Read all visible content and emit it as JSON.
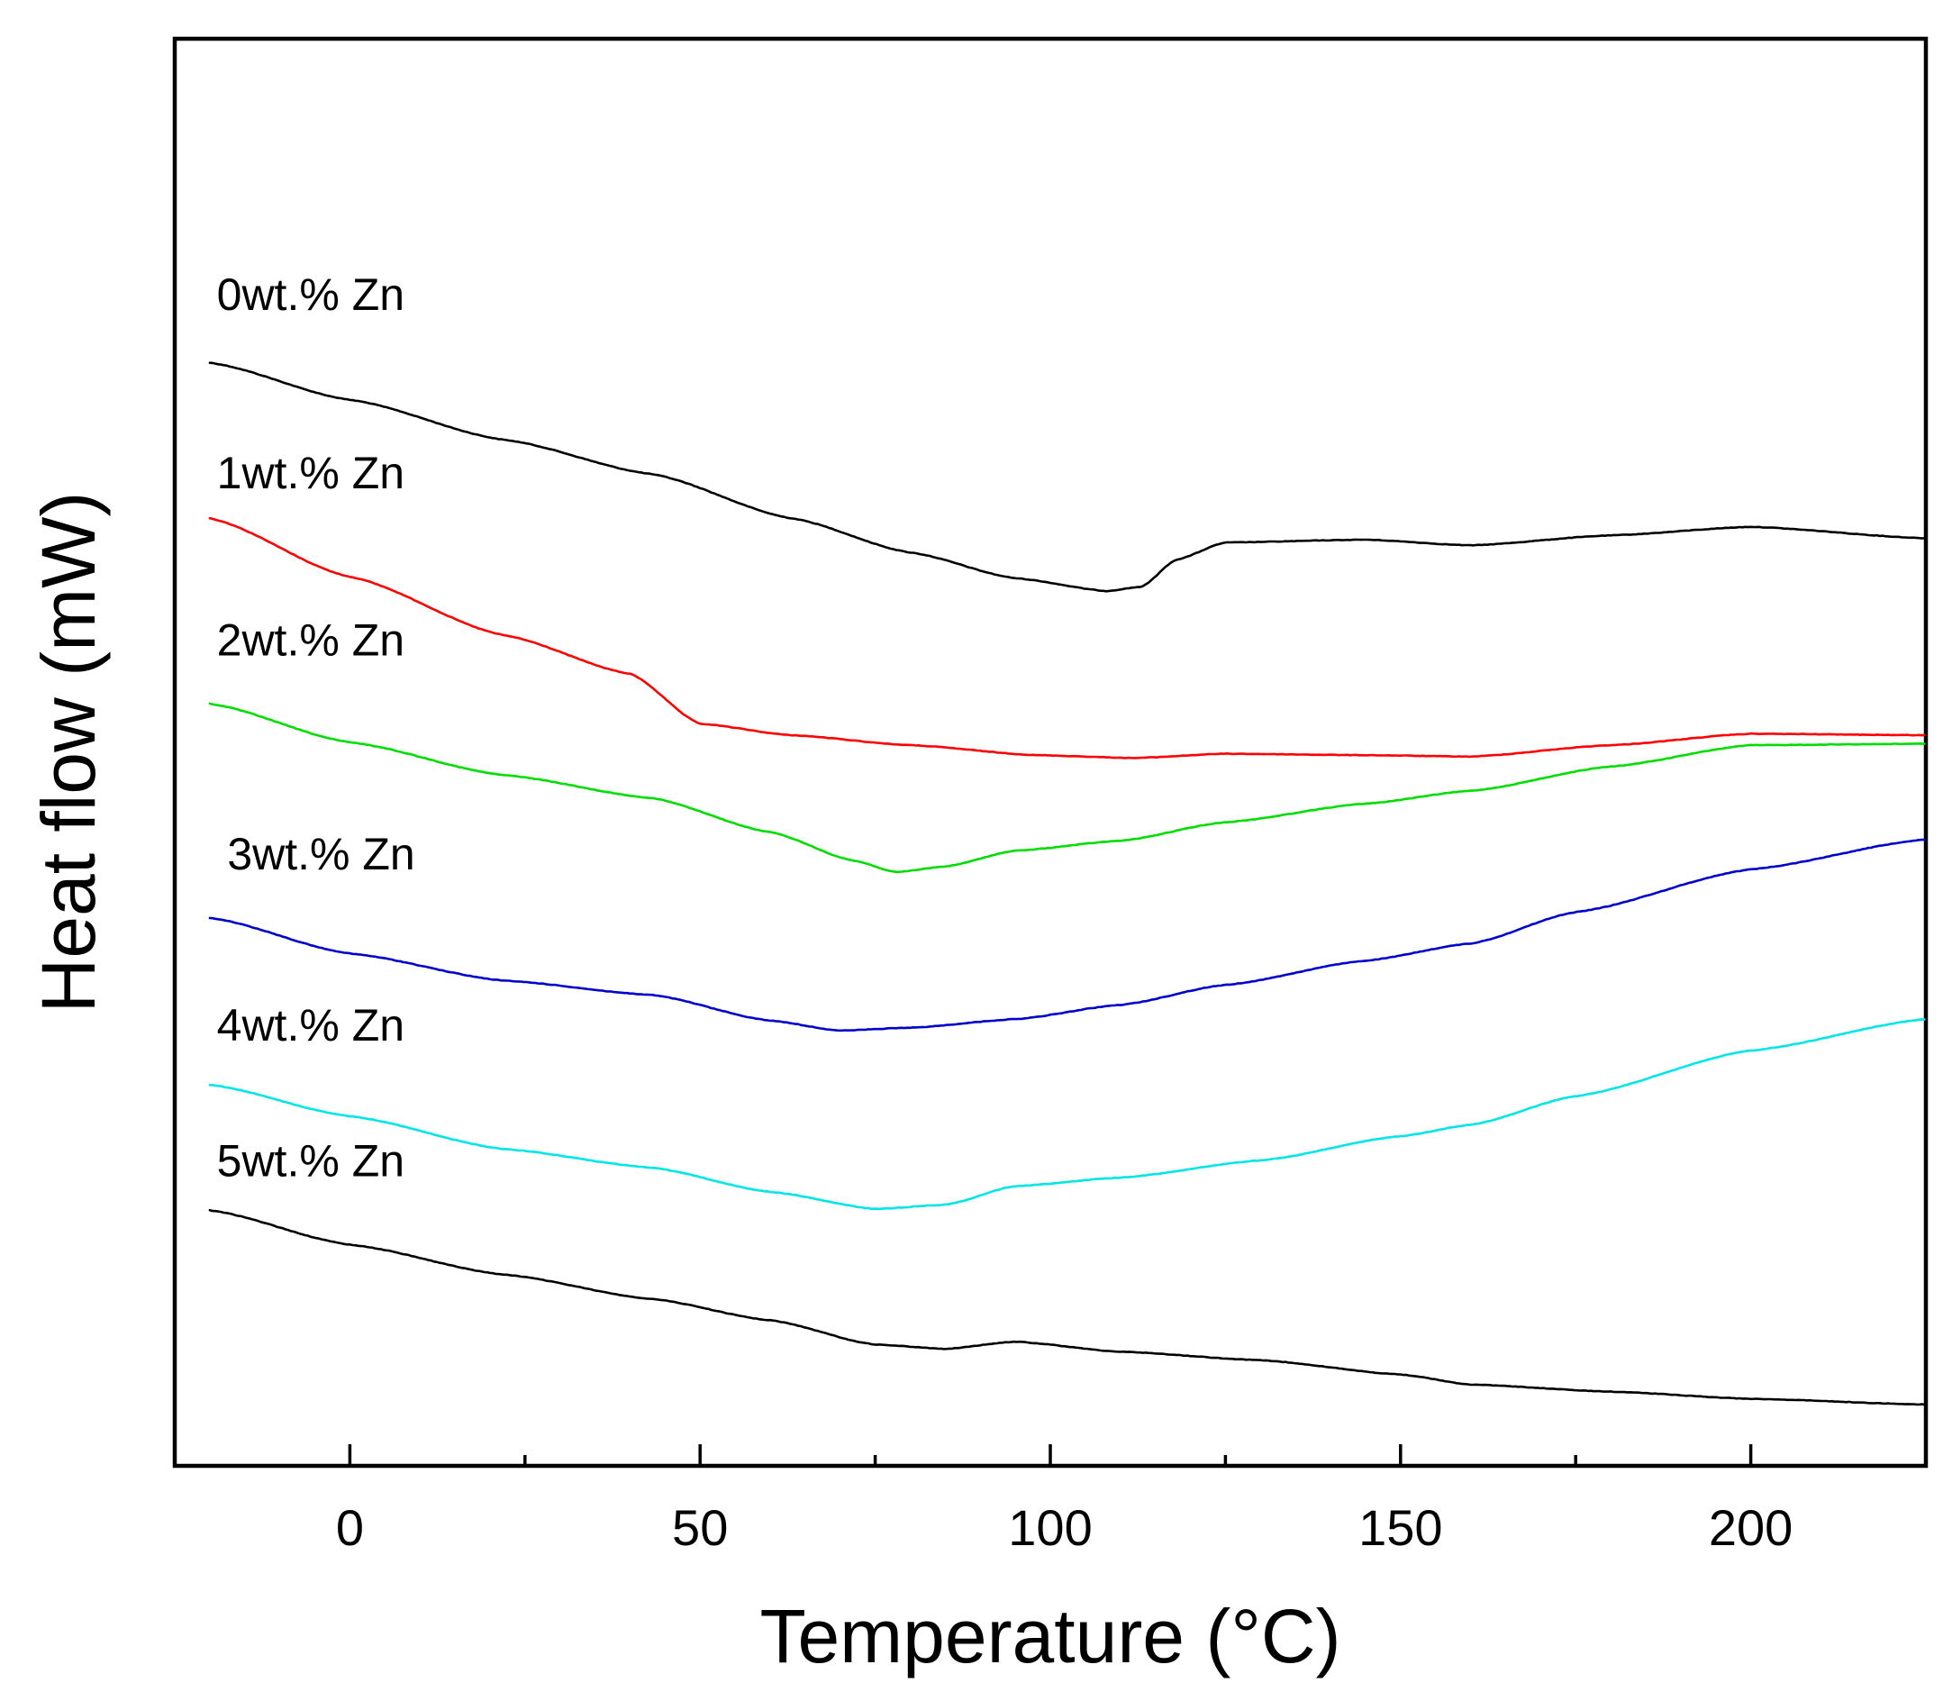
{
  "chart_data": {
    "type": "line",
    "title": "",
    "xlabel": "Temperature (°C)",
    "ylabel": "Heat flow (mW)",
    "xlim": [
      -25,
      225
    ],
    "ylim": [
      0,
      100
    ],
    "x_ticks_major": [
      0,
      50,
      100,
      150,
      200
    ],
    "x_tick_labels": [
      "0",
      "50",
      "100",
      "150",
      "200"
    ],
    "x_ticks_minor": [
      25,
      75,
      125,
      175
    ],
    "y_ticks": [],
    "grid": false,
    "legend": "inline labels at left of each curve",
    "series": [
      {
        "name": "0wt.% Zn",
        "color": "#000000",
        "x": [
          -20,
          0,
          22,
          43,
          63,
          80,
          95,
          108,
          113,
          118,
          125,
          145,
          160,
          180,
          200,
          225
        ],
        "y": [
          77.3,
          74.7,
          71.9,
          69.5,
          66.4,
          64.0,
          62.2,
          61.3,
          61.6,
          63.5,
          64.7,
          64.9,
          64.5,
          65.2,
          65.8,
          65.0
        ]
      },
      {
        "name": "1wt.% Zn",
        "color": "#ff0000",
        "x": [
          -20,
          0,
          22,
          40,
          50,
          63,
          80,
          98,
          112,
          125,
          145,
          160,
          180,
          200,
          225
        ],
        "y": [
          66.4,
          62.3,
          58.2,
          55.5,
          52.0,
          51.2,
          50.5,
          49.8,
          49.6,
          49.9,
          49.8,
          49.7,
          50.5,
          51.3,
          51.2
        ]
      },
      {
        "name": "2wt.% Zn",
        "color": "#00dd00",
        "x": [
          -20,
          0,
          22,
          43,
          60,
          72,
          78,
          85,
          95,
          110,
          125,
          145,
          160,
          180,
          200,
          225
        ],
        "y": [
          53.4,
          50.7,
          48.4,
          46.8,
          44.4,
          42.4,
          41.6,
          42.0,
          43.1,
          43.8,
          45.1,
          46.4,
          47.3,
          49.0,
          50.5,
          50.6
        ]
      },
      {
        "name": "3wt.% Zn",
        "color": "#0000cc",
        "x": [
          -20,
          0,
          22,
          43,
          60,
          70,
          80,
          95,
          110,
          125,
          145,
          160,
          175,
          200,
          225
        ],
        "y": [
          38.4,
          35.9,
          34.0,
          33.0,
          31.2,
          30.5,
          30.7,
          31.3,
          32.3,
          33.7,
          35.4,
          36.6,
          38.8,
          41.8,
          43.9
        ]
      },
      {
        "name": "4wt.% Zn",
        "color": "#00e5e5",
        "x": [
          -20,
          0,
          22,
          43,
          60,
          75,
          85,
          95,
          110,
          130,
          150,
          160,
          175,
          200,
          225
        ],
        "y": [
          26.7,
          24.5,
          22.2,
          20.9,
          19.2,
          18.0,
          18.3,
          19.6,
          20.2,
          21.4,
          23.1,
          23.9,
          25.9,
          29.1,
          31.3
        ]
      },
      {
        "name": "5wt.% Zn",
        "color": "#000000",
        "x": [
          -20,
          0,
          22,
          43,
          60,
          75,
          85,
          95,
          110,
          130,
          150,
          160,
          180,
          200,
          225
        ],
        "y": [
          17.9,
          15.5,
          13.4,
          11.7,
          10.2,
          8.5,
          8.2,
          8.7,
          8.0,
          7.4,
          6.4,
          5.7,
          5.2,
          4.7,
          4.3
        ]
      }
    ],
    "annotations": [
      {
        "text": "0wt.% Zn",
        "x": -19,
        "y": 81.0
      },
      {
        "text": "1wt.% Zn",
        "x": -19,
        "y": 68.5
      },
      {
        "text": "2wt.% Zn",
        "x": -19,
        "y": 56.8
      },
      {
        "text": "3wt.% Zn",
        "x": -17.5,
        "y": 41.8
      },
      {
        "text": "4wt.% Zn",
        "x": -19,
        "y": 29.8
      },
      {
        "text": "5wt.% Zn",
        "x": -19,
        "y": 20.3
      }
    ]
  }
}
